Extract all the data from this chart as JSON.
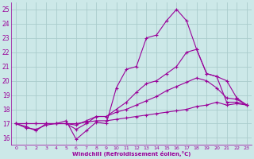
{
  "xlabel": "Windchill (Refroidissement éolien,°C)",
  "ylabel": "",
  "xlim": [
    -0.5,
    23.5
  ],
  "ylim": [
    15.5,
    25.5
  ],
  "yticks": [
    16,
    17,
    18,
    19,
    20,
    21,
    22,
    23,
    24,
    25
  ],
  "xticks": [
    0,
    1,
    2,
    3,
    4,
    5,
    6,
    7,
    8,
    9,
    10,
    11,
    12,
    13,
    14,
    15,
    16,
    17,
    18,
    19,
    20,
    21,
    22,
    23
  ],
  "background_color": "#cce8e8",
  "grid_color": "#aacccc",
  "line_color": "#990099",
  "series": [
    {
      "x": [
        0,
        1,
        2,
        3,
        4,
        5,
        6,
        7,
        8,
        9,
        10,
        11,
        12,
        13,
        14,
        15,
        16,
        17,
        18,
        19,
        20,
        21,
        22,
        23
      ],
      "y": [
        17.0,
        16.8,
        16.5,
        17.0,
        17.0,
        17.2,
        15.9,
        16.5,
        17.1,
        17.0,
        19.5,
        20.8,
        21.0,
        23.0,
        23.2,
        24.2,
        25.0,
        24.2,
        22.2,
        20.5,
        20.3,
        18.5,
        18.5,
        18.3
      ]
    },
    {
      "x": [
        0,
        1,
        2,
        3,
        4,
        5,
        6,
        7,
        8,
        9,
        10,
        11,
        12,
        13,
        14,
        15,
        16,
        17,
        18,
        19,
        20,
        21,
        22,
        23
      ],
      "y": [
        17.0,
        16.7,
        16.6,
        16.9,
        17.0,
        17.0,
        16.6,
        17.0,
        17.5,
        17.5,
        18.0,
        18.5,
        19.2,
        19.8,
        20.0,
        20.5,
        21.0,
        22.0,
        22.2,
        20.5,
        20.3,
        20.0,
        18.8,
        18.3
      ]
    },
    {
      "x": [
        0,
        1,
        2,
        3,
        4,
        5,
        6,
        7,
        8,
        9,
        10,
        11,
        12,
        13,
        14,
        15,
        16,
        17,
        18,
        19,
        20,
        21,
        22,
        23
      ],
      "y": [
        17.0,
        17.0,
        17.0,
        17.0,
        17.0,
        17.0,
        16.9,
        17.2,
        17.5,
        17.5,
        17.8,
        18.0,
        18.3,
        18.6,
        18.9,
        19.3,
        19.6,
        19.9,
        20.2,
        20.0,
        19.5,
        18.8,
        18.7,
        18.3
      ]
    },
    {
      "x": [
        0,
        1,
        2,
        3,
        4,
        5,
        6,
        7,
        8,
        9,
        10,
        11,
        12,
        13,
        14,
        15,
        16,
        17,
        18,
        19,
        20,
        21,
        22,
        23
      ],
      "y": [
        17.0,
        17.0,
        17.0,
        17.0,
        17.0,
        17.0,
        17.0,
        17.1,
        17.2,
        17.2,
        17.3,
        17.4,
        17.5,
        17.6,
        17.7,
        17.8,
        17.9,
        18.0,
        18.2,
        18.3,
        18.5,
        18.3,
        18.4,
        18.3
      ]
    }
  ]
}
